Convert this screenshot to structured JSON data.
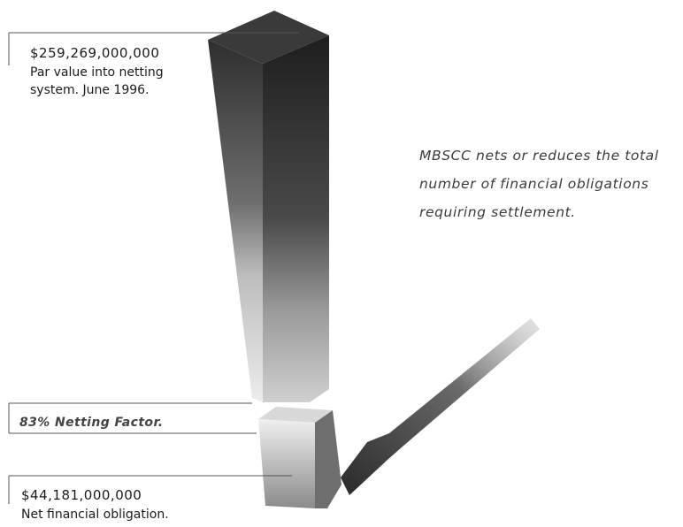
{
  "top_callout": {
    "amount": "$259,269,000,000",
    "line1": "Par value into netting",
    "line2": "system.  June 1996."
  },
  "side_note": {
    "line1": "MBSCC nets or reduces the total",
    "line2": "number of financial obligations",
    "line3": "requiring settlement."
  },
  "netting_factor": "83% Netting Factor.",
  "bottom_callout": {
    "amount": "$44,181,000,000",
    "line1": "Net financial obligation."
  },
  "colors": {
    "bar_dark": "#2a2a2a",
    "bar_light": "#e6e6e6",
    "shadow": "#5a5a5a"
  }
}
